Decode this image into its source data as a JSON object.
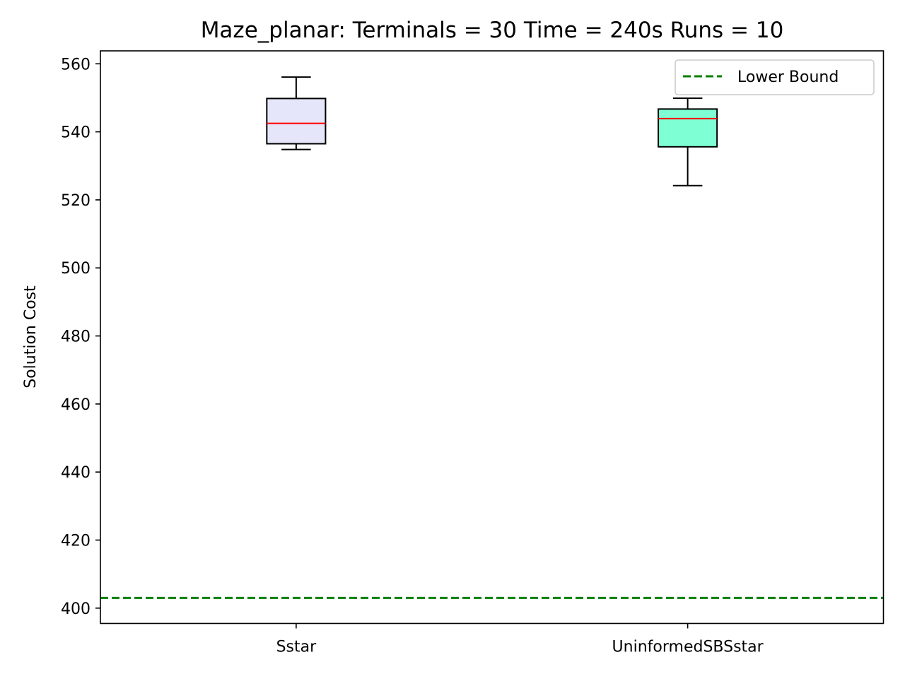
{
  "chart_data": {
    "type": "box",
    "title": "Maze_planar:  Terminals = 30  Time = 240s  Runs = 10",
    "xlabel": "",
    "ylabel": "Solution Cost",
    "ylim": [
      395.5,
      563.8
    ],
    "yticks": [
      400,
      420,
      440,
      460,
      480,
      500,
      520,
      540,
      560
    ],
    "categories": [
      "Sstar",
      "UninformedSBSstar"
    ],
    "boxes": [
      {
        "name": "Sstar",
        "whisker_low": 534.8,
        "q1": 536.5,
        "median": 542.5,
        "q3": 549.8,
        "whisker_high": 556.1,
        "fill": "#e6e6fa"
      },
      {
        "name": "UninformedSBSstar",
        "whisker_low": 524.2,
        "q1": 535.6,
        "median": 543.9,
        "q3": 546.7,
        "whisker_high": 549.9,
        "fill": "#7fffd4"
      }
    ],
    "reference_lines": [
      {
        "label": "Lower Bound",
        "y": 403.0,
        "color": "#008000",
        "style": "dashed"
      }
    ],
    "median_color": "#ff0000",
    "legend": {
      "position": "top-right",
      "entries": [
        "Lower Bound"
      ]
    }
  }
}
